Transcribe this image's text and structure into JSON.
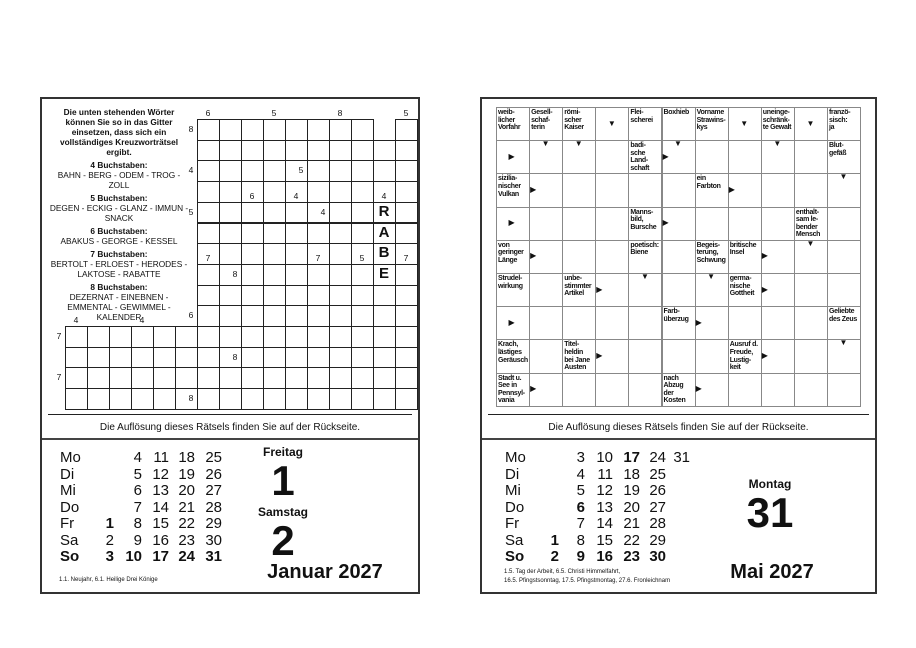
{
  "left_page": {
    "instructions": {
      "intro": "Die unten stehenden Wörter können Sie so in das Gitter einsetzen, dass sich ein vollständiges Kreuzworträtsel ergibt.",
      "groups": [
        {
          "heading": "4 Buchstaben:",
          "words": "BAHN - BERG - ODEM - TROG - ZOLL"
        },
        {
          "heading": "5 Buchstaben:",
          "words": "DEGEN - ECKIG - GLANZ - IMMUN - SNACK"
        },
        {
          "heading": "6 Buchstaben:",
          "words": "ABAKUS - GEORGE - KESSEL"
        },
        {
          "heading": "7 Buchstaben:",
          "words": "BERTOLT - ERLOEST - HERODES - LAKTOSE - RABATTE"
        },
        {
          "heading": "8 Buchstaben:",
          "words": "DEZERNAT - EINEBNEN - EMMENTAL - GEWIMMEL - KALENDER"
        }
      ]
    },
    "grid": {
      "rows": [
        "......########.#",
        "......##########",
        "......##########",
        "......##########",
        "......##########",
        "......##########",
        "......##########",
        "......##########",
        "......##########",
        "......##########",
        "################",
        "################",
        "################",
        "################"
      ],
      "letters": [
        {
          "row": 4,
          "col": 14,
          "char": "R"
        },
        {
          "row": 5,
          "col": 14,
          "char": "A"
        },
        {
          "row": 6,
          "col": 14,
          "char": "B"
        },
        {
          "row": 7,
          "col": 14,
          "char": "E"
        }
      ],
      "length_hints": [
        {
          "row": 0,
          "col": 6,
          "side": "top",
          "value": "6"
        },
        {
          "row": 0,
          "col": 9,
          "side": "top",
          "value": "5"
        },
        {
          "row": 0,
          "col": 12,
          "side": "top",
          "value": "8"
        },
        {
          "row": 0,
          "col": 15,
          "side": "top",
          "value": "5"
        },
        {
          "row": 0,
          "col": 6,
          "side": "left",
          "value": "8"
        },
        {
          "row": 2,
          "col": 6,
          "side": "left",
          "value": "4"
        },
        {
          "row": 2,
          "col": 11,
          "side": "left",
          "value": "5"
        },
        {
          "row": 4,
          "col": 8,
          "side": "top",
          "value": "6"
        },
        {
          "row": 4,
          "col": 10,
          "side": "top",
          "value": "4"
        },
        {
          "row": 4,
          "col": 14,
          "side": "top",
          "value": "4"
        },
        {
          "row": 4,
          "col": 6,
          "side": "left",
          "value": "5"
        },
        {
          "row": 4,
          "col": 12,
          "side": "left",
          "value": "4"
        },
        {
          "row": 7,
          "col": 6,
          "side": "top",
          "value": "7"
        },
        {
          "row": 7,
          "col": 11,
          "side": "top",
          "value": "7"
        },
        {
          "row": 7,
          "col": 13,
          "side": "top",
          "value": "5"
        },
        {
          "row": 7,
          "col": 15,
          "side": "top",
          "value": "7"
        },
        {
          "row": 7,
          "col": 8,
          "side": "left",
          "value": "8"
        },
        {
          "row": 9,
          "col": 6,
          "side": "left",
          "value": "6"
        },
        {
          "row": 10,
          "col": 0,
          "side": "top",
          "value": "4"
        },
        {
          "row": 10,
          "col": 3,
          "side": "top",
          "value": "4"
        },
        {
          "row": 10,
          "col": 0,
          "side": "left",
          "value": "7"
        },
        {
          "row": 11,
          "col": 8,
          "side": "left",
          "value": "8"
        },
        {
          "row": 12,
          "col": 0,
          "side": "left",
          "value": "7"
        },
        {
          "row": 13,
          "col": 6,
          "side": "left",
          "value": "8"
        }
      ]
    },
    "solution_hint": "Die Auflösung dieses Rätsels finden Sie auf der Rückseite.",
    "calendar": {
      "labels": [
        "Mo",
        "Di",
        "Mi",
        "Do",
        "Fr",
        "Sa",
        "So"
      ],
      "weeks": [
        [
          "",
          "4",
          "11",
          "18",
          "25",
          ""
        ],
        [
          "",
          "5",
          "12",
          "19",
          "26",
          ""
        ],
        [
          "",
          "6",
          "13",
          "20",
          "27",
          ""
        ],
        [
          "",
          "7",
          "14",
          "21",
          "28",
          ""
        ],
        [
          "1",
          "8",
          "15",
          "22",
          "29",
          ""
        ],
        [
          "2",
          "9",
          "16",
          "23",
          "30",
          ""
        ],
        [
          "3",
          "10",
          "17",
          "24",
          "31",
          ""
        ]
      ],
      "bold_days": [
        "1"
      ],
      "bold_row": "So",
      "days": [
        {
          "weekday": "Freitag",
          "day": "1"
        },
        {
          "weekday": "Samstag",
          "day": "2"
        }
      ],
      "month": "Januar 2027",
      "holidays": [
        "1.1. Neujahr, 6.1. Heilige Drei Könige"
      ]
    }
  },
  "right_page": {
    "grid": {
      "cols": 11,
      "rows": 9,
      "clues": [
        {
          "row": 0,
          "col": 0,
          "text": "weib-\nlicher\nVorfahr"
        },
        {
          "row": 0,
          "col": 1,
          "text": "Gesell-\nschaf-\nterin"
        },
        {
          "row": 0,
          "col": 2,
          "text": "römi-\nscher\nKaiser"
        },
        {
          "row": 0,
          "col": 4,
          "text": "Flei-\nscherei"
        },
        {
          "row": 0,
          "col": 5,
          "text": "Boxhieb"
        },
        {
          "row": 0,
          "col": 6,
          "text": "Vorname\nStrawins-\nkys"
        },
        {
          "row": 0,
          "col": 8,
          "text": "uneinge-\nschränk-\nte Gewalt"
        },
        {
          "row": 0,
          "col": 10,
          "text": "franzö-\nsisch:\nja"
        },
        {
          "row": 1,
          "col": 4,
          "text": "badi-\nsche\nLand-\nschaft"
        },
        {
          "row": 1,
          "col": 10,
          "text": "Blut-\ngefäß"
        },
        {
          "row": 2,
          "col": 0,
          "text": "sizilia-\nnischer\nVulkan"
        },
        {
          "row": 2,
          "col": 6,
          "text": "ein\nFarbton"
        },
        {
          "row": 3,
          "col": 4,
          "text": "Manns-\nbild,\nBursche"
        },
        {
          "row": 3,
          "col": 9,
          "text": "enthalt-\nsam le-\nbender\nMensch"
        },
        {
          "row": 4,
          "col": 0,
          "text": "von\ngeringer\nLänge"
        },
        {
          "row": 4,
          "col": 4,
          "text": "poetisch:\nBiene"
        },
        {
          "row": 4,
          "col": 6,
          "text": "Begeis-\nterung,\nSchwung"
        },
        {
          "row": 4,
          "col": 7,
          "text": "britische\nInsel"
        },
        {
          "row": 5,
          "col": 0,
          "text": "Strudel-\nwirkung"
        },
        {
          "row": 5,
          "col": 2,
          "text": "unbe-\nstimmter\nArtikel"
        },
        {
          "row": 5,
          "col": 7,
          "text": "germa-\nnische\nGottheit"
        },
        {
          "row": 6,
          "col": 5,
          "text": "Farb-\nüberzug"
        },
        {
          "row": 6,
          "col": 10,
          "text": "Geliebte\ndes Zeus"
        },
        {
          "row": 7,
          "col": 0,
          "text": "Krach,\nlästiges\nGeräusch"
        },
        {
          "row": 7,
          "col": 2,
          "text": "Titel-\nheldin\nbei Jane\nAusten"
        },
        {
          "row": 7,
          "col": 7,
          "text": "Ausruf d.\nFreude,\nLustig-\nkeit"
        },
        {
          "row": 8,
          "col": 0,
          "text": "Stadt u.\nSee in\nPennsyl-\nvania"
        },
        {
          "row": 8,
          "col": 5,
          "text": "nach\nAbzug\nder\nKosten"
        }
      ],
      "arrows": [
        {
          "row": 0,
          "col": 3,
          "dir": "down",
          "anchor": "center"
        },
        {
          "row": 0,
          "col": 7,
          "dir": "down",
          "anchor": "center"
        },
        {
          "row": 0,
          "col": 9,
          "dir": "down",
          "anchor": "center"
        },
        {
          "row": 1,
          "col": 1,
          "dir": "down",
          "anchor": "top"
        },
        {
          "row": 1,
          "col": 2,
          "dir": "down",
          "anchor": "top"
        },
        {
          "row": 1,
          "col": 5,
          "dir": "down",
          "anchor": "top"
        },
        {
          "row": 1,
          "col": 8,
          "dir": "down",
          "anchor": "top"
        },
        {
          "row": 1,
          "col": 0,
          "dir": "right",
          "anchor": "center"
        },
        {
          "row": 1,
          "col": 5,
          "dir": "right",
          "anchor": "left"
        },
        {
          "row": 2,
          "col": 10,
          "dir": "down",
          "anchor": "top"
        },
        {
          "row": 2,
          "col": 1,
          "dir": "right",
          "anchor": "left"
        },
        {
          "row": 2,
          "col": 7,
          "dir": "right",
          "anchor": "left"
        },
        {
          "row": 3,
          "col": 0,
          "dir": "right",
          "anchor": "center"
        },
        {
          "row": 3,
          "col": 5,
          "dir": "right",
          "anchor": "left"
        },
        {
          "row": 4,
          "col": 9,
          "dir": "down",
          "anchor": "top"
        },
        {
          "row": 4,
          "col": 1,
          "dir": "right",
          "anchor": "left"
        },
        {
          "row": 4,
          "col": 8,
          "dir": "right",
          "anchor": "left"
        },
        {
          "row": 5,
          "col": 4,
          "dir": "down",
          "anchor": "top"
        },
        {
          "row": 5,
          "col": 6,
          "dir": "down",
          "anchor": "top"
        },
        {
          "row": 5,
          "col": 3,
          "dir": "right",
          "anchor": "left"
        },
        {
          "row": 5,
          "col": 8,
          "dir": "right",
          "anchor": "left"
        },
        {
          "row": 6,
          "col": 0,
          "dir": "right",
          "anchor": "center"
        },
        {
          "row": 6,
          "col": 6,
          "dir": "right",
          "anchor": "left"
        },
        {
          "row": 7,
          "col": 10,
          "dir": "down",
          "anchor": "top"
        },
        {
          "row": 7,
          "col": 3,
          "dir": "right",
          "anchor": "left"
        },
        {
          "row": 7,
          "col": 8,
          "dir": "right",
          "anchor": "left"
        },
        {
          "row": 8,
          "col": 1,
          "dir": "right",
          "anchor": "left"
        },
        {
          "row": 8,
          "col": 6,
          "dir": "right",
          "anchor": "left"
        }
      ]
    },
    "solution_hint": "Die Auflösung dieses Rätsels finden Sie auf der Rückseite.",
    "calendar": {
      "labels": [
        "Mo",
        "Di",
        "Mi",
        "Do",
        "Fr",
        "Sa",
        "So"
      ],
      "weeks": [
        [
          "",
          "3",
          "10",
          "17",
          "24",
          "31"
        ],
        [
          "",
          "4",
          "11",
          "18",
          "25",
          ""
        ],
        [
          "",
          "5",
          "12",
          "19",
          "26",
          ""
        ],
        [
          "",
          "6",
          "13",
          "20",
          "27",
          ""
        ],
        [
          "",
          "7",
          "14",
          "21",
          "28",
          ""
        ],
        [
          "1",
          "8",
          "15",
          "22",
          "29",
          ""
        ],
        [
          "2",
          "9",
          "16",
          "23",
          "30",
          ""
        ]
      ],
      "bold_days": [
        "17",
        "6",
        "1"
      ],
      "bold_row": "So",
      "days": [
        {
          "weekday": "Montag",
          "day": "31"
        }
      ],
      "month": "Mai 2027",
      "holidays": [
        "1.5. Tag der Arbeit, 6.5. Christi Himmelfahrt,",
        "16.5. Pfingstsonntag, 17.5. Pfingstmontag, 27.6. Fronleichnam"
      ]
    }
  }
}
